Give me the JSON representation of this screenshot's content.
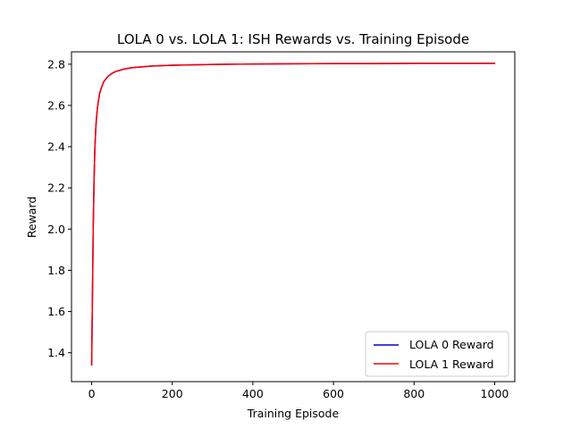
{
  "chart_data": {
    "type": "line",
    "title": "LOLA 0 vs. LOLA 1: ISH Rewards vs. Training Episode",
    "xlabel": "Training Episode",
    "ylabel": "Reward",
    "xlim": [
      -50,
      1050
    ],
    "ylim": [
      1.26,
      2.86
    ],
    "xticks": [
      0,
      200,
      400,
      600,
      800,
      1000
    ],
    "yticks": [
      1.4,
      1.6,
      1.8,
      2.0,
      2.2,
      2.4,
      2.6,
      2.8
    ],
    "grid": false,
    "legend_position": "lower right",
    "x": [
      0,
      2,
      4,
      6,
      8,
      10,
      12,
      15,
      20,
      25,
      30,
      40,
      50,
      60,
      80,
      100,
      150,
      200,
      300,
      400,
      500,
      600,
      700,
      800,
      900,
      1000
    ],
    "series": [
      {
        "name": "LOLA 0 Reward",
        "color": "#0000cc",
        "values": [
          1.34,
          1.68,
          2.02,
          2.24,
          2.39,
          2.48,
          2.54,
          2.6,
          2.66,
          2.69,
          2.715,
          2.74,
          2.755,
          2.765,
          2.776,
          2.783,
          2.791,
          2.795,
          2.799,
          2.801,
          2.802,
          2.803,
          2.803,
          2.804,
          2.804,
          2.804
        ]
      },
      {
        "name": "LOLA 1 Reward",
        "color": "#ff0000",
        "values": [
          1.34,
          1.68,
          2.02,
          2.24,
          2.39,
          2.48,
          2.54,
          2.6,
          2.66,
          2.69,
          2.715,
          2.74,
          2.755,
          2.765,
          2.776,
          2.783,
          2.791,
          2.795,
          2.799,
          2.801,
          2.802,
          2.803,
          2.803,
          2.804,
          2.804,
          2.804
        ]
      }
    ]
  }
}
